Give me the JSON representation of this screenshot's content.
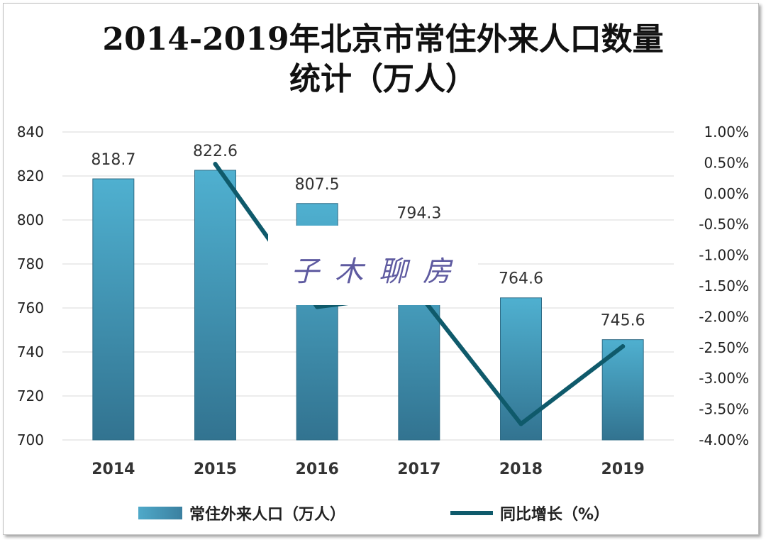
{
  "title_line1": "2014-2019年北京市常住外来人口数量",
  "title_line2": "统计（万人）",
  "watermark": "子木聊房",
  "legend": {
    "bar": "常住外来人口（万人）",
    "line": "同比增长（%）"
  },
  "colors": {
    "bar_top": "#4fb0d0",
    "bar_bottom": "#327390",
    "line": "#0f5a6b"
  },
  "chart_data": {
    "type": "bar",
    "categories": [
      "2014",
      "2015",
      "2016",
      "2017",
      "2018",
      "2019"
    ],
    "series": [
      {
        "name": "常住外来人口（万人）",
        "type": "bar",
        "axis": "left",
        "values": [
          818.7,
          822.6,
          807.5,
          794.3,
          764.6,
          745.6
        ],
        "labels": [
          "818.7",
          "822.6",
          "807.5",
          "794.3",
          "764.6",
          "745.6"
        ]
      },
      {
        "name": "同比增长（%）",
        "type": "line",
        "axis": "right",
        "x": [
          "2015",
          "2016",
          "2017",
          "2018",
          "2019"
        ],
        "values": [
          0.48,
          -1.84,
          -1.63,
          -3.74,
          -2.48
        ]
      }
    ],
    "y_left": {
      "ylim": [
        700,
        840
      ],
      "ticks": [
        "700",
        "720",
        "740",
        "760",
        "780",
        "800",
        "820",
        "840"
      ]
    },
    "y_right": {
      "ylim": [
        -4.0,
        1.0
      ],
      "ticks": [
        "-4.00%",
        "-3.50%",
        "-3.00%",
        "-2.50%",
        "-2.00%",
        "-1.50%",
        "-1.00%",
        "-0.50%",
        "0.00%",
        "0.50%",
        "1.00%"
      ]
    },
    "grid": true,
    "legend_position": "bottom"
  }
}
